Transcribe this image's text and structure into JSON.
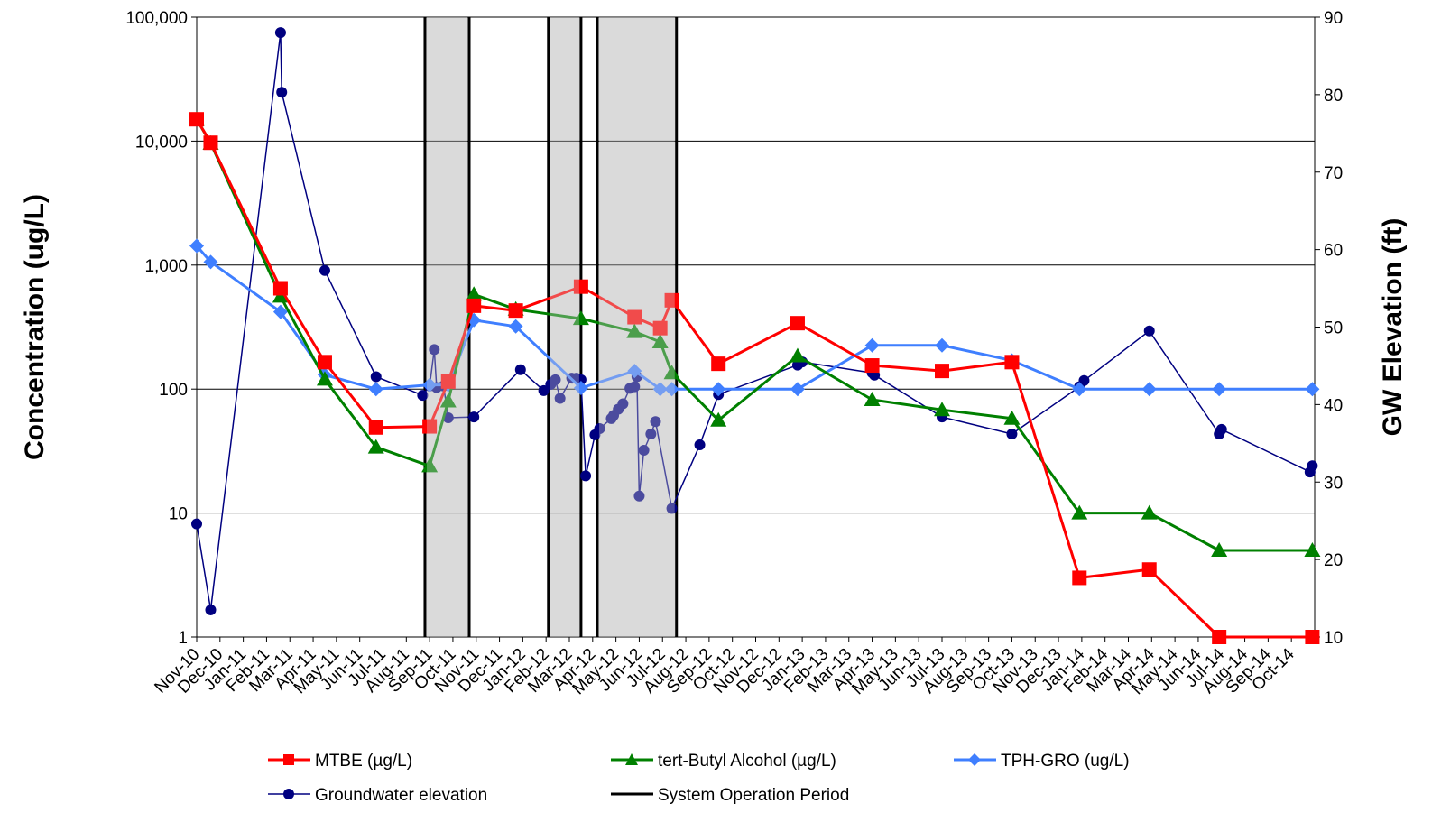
{
  "chart_data": {
    "type": "line",
    "title": "",
    "ylabel": "Concentration (ug/L)",
    "y2label": "GW Elevation (ft)",
    "yscale": "log",
    "ylim": [
      1,
      100000
    ],
    "y_ticks": [
      "1",
      "10",
      "100",
      "1,000",
      "10,000",
      "100,000"
    ],
    "y2lim": [
      10,
      90
    ],
    "y2_ticks": [
      "10",
      "20",
      "30",
      "40",
      "50",
      "60",
      "70",
      "80",
      "90"
    ],
    "x_tick_labels": [
      "Nov-10",
      "Dec-10",
      "Jan-11",
      "Feb-11",
      "Mar-11",
      "Apr-11",
      "May-11",
      "Jun-11",
      "Jul-11",
      "Aug-11",
      "Sep-11",
      "Oct-11",
      "Nov-11",
      "Dec-11",
      "Jan-12",
      "Feb-12",
      "Mar-12",
      "Apr-12",
      "May-12",
      "Jun-12",
      "Jul-12",
      "Aug-12",
      "Sep-12",
      "Oct-12",
      "Nov-12",
      "Dec-12",
      "Jan-13",
      "Feb-13",
      "Mar-13",
      "Apr-13",
      "May-13",
      "Jun-13",
      "Jul-13",
      "Aug-13",
      "Sep-13",
      "Oct-13",
      "Nov-13",
      "Dec-13",
      "Jan-14",
      "Feb-14",
      "Mar-14",
      "Apr-14",
      "May-14",
      "Jun-14",
      "Jul-14",
      "Aug-14",
      "Sep-14",
      "Oct-14"
    ],
    "x_range_months": [
      0,
      48
    ],
    "grid": "horizontal",
    "legend_placement": "bottom",
    "series": [
      {
        "name": "MTBE (µg/L)",
        "axis": "left",
        "color": "#ff0000",
        "marker": "square",
        "points": [
          [
            0,
            15000
          ],
          [
            0.6,
            9700
          ],
          [
            3.6,
            650
          ],
          [
            5.5,
            165
          ],
          [
            7.7,
            49
          ],
          [
            10,
            50
          ],
          [
            10.8,
            115
          ],
          [
            11.9,
            470
          ],
          [
            13.7,
            430
          ],
          [
            16.5,
            670
          ],
          [
            18.8,
            380
          ],
          [
            19.9,
            310
          ],
          [
            20.4,
            520
          ],
          [
            22.4,
            160
          ],
          [
            25.8,
            340
          ],
          [
            29,
            155
          ],
          [
            32,
            140
          ],
          [
            35,
            165
          ],
          [
            37.9,
            3
          ],
          [
            40.9,
            3.5
          ],
          [
            43.9,
            1
          ],
          [
            47.9,
            1
          ]
        ]
      },
      {
        "name": "tert-Butyl Alcohol (µg/L)",
        "axis": "left",
        "color": "#008000",
        "marker": "triangle",
        "points": [
          [
            0,
            15000
          ],
          [
            0.6,
            9600
          ],
          [
            3.6,
            560
          ],
          [
            5.5,
            120
          ],
          [
            7.7,
            34
          ],
          [
            10,
            24
          ],
          [
            10.8,
            80
          ],
          [
            11.9,
            580
          ],
          [
            13.7,
            440
          ],
          [
            16.5,
            370
          ],
          [
            18.8,
            290
          ],
          [
            19.9,
            240
          ],
          [
            20.4,
            135
          ],
          [
            22.4,
            56
          ],
          [
            25.8,
            185
          ],
          [
            29,
            82
          ],
          [
            32,
            68
          ],
          [
            35,
            58
          ],
          [
            37.9,
            10
          ],
          [
            40.9,
            10
          ],
          [
            43.9,
            5
          ],
          [
            47.9,
            5
          ]
        ]
      },
      {
        "name": "TPH-GRO (ug/L)",
        "axis": "left",
        "color": "#3f7fff",
        "marker": "diamond",
        "points": [
          [
            0,
            1430
          ],
          [
            0.6,
            1060
          ],
          [
            3.6,
            420
          ],
          [
            5.5,
            130
          ],
          [
            7.7,
            100
          ],
          [
            10,
            108
          ],
          [
            10.8,
            108
          ],
          [
            11.9,
            360
          ],
          [
            13.7,
            320
          ],
          [
            16.5,
            102
          ],
          [
            18.8,
            140
          ],
          [
            19.9,
            100
          ],
          [
            20.4,
            100
          ],
          [
            22.4,
            100
          ],
          [
            25.8,
            100
          ],
          [
            29,
            225
          ],
          [
            32,
            225
          ],
          [
            35,
            170
          ],
          [
            37.9,
            100
          ],
          [
            40.9,
            100
          ],
          [
            43.9,
            100
          ],
          [
            47.9,
            100
          ]
        ]
      },
      {
        "name": "Groundwater elevation",
        "axis": "right",
        "color": "#000080",
        "marker": "circle",
        "points": [
          [
            0,
            24.6
          ],
          [
            0.6,
            13.5
          ],
          [
            3.6,
            88
          ],
          [
            3.65,
            80.3
          ],
          [
            5.5,
            57.3
          ],
          [
            7.7,
            43.6
          ],
          [
            9.7,
            41.2
          ],
          [
            10,
            42.4
          ],
          [
            10.2,
            47.1
          ],
          [
            10.3,
            42.2
          ],
          [
            10.6,
            42.4
          ],
          [
            10.8,
            38.3
          ],
          [
            11.9,
            38.4
          ],
          [
            13.9,
            44.5
          ],
          [
            14.9,
            41.8
          ],
          [
            15.2,
            42.6
          ],
          [
            15.4,
            43.2
          ],
          [
            15.6,
            40.8
          ],
          [
            16.1,
            43.4
          ],
          [
            16.3,
            43.4
          ],
          [
            16.5,
            43.2
          ],
          [
            16.7,
            30.8
          ],
          [
            17.1,
            36.1
          ],
          [
            17.3,
            36.9
          ],
          [
            17.8,
            38.2
          ],
          [
            17.9,
            38.6
          ],
          [
            18.1,
            39.4
          ],
          [
            18.3,
            40.1
          ],
          [
            18.6,
            42.1
          ],
          [
            18.8,
            42.3
          ],
          [
            18.9,
            43.6
          ],
          [
            19.0,
            28.2
          ],
          [
            19.2,
            34.1
          ],
          [
            19.5,
            36.2
          ],
          [
            19.7,
            37.8
          ],
          [
            20.4,
            26.6
          ],
          [
            21.6,
            34.8
          ],
          [
            22.4,
            41.3
          ],
          [
            25.8,
            45.1
          ],
          [
            26,
            45.5
          ],
          [
            29,
            44.1
          ],
          [
            29.1,
            43.8
          ],
          [
            32,
            38.4
          ],
          [
            35,
            36.2
          ],
          [
            37.9,
            42.3
          ],
          [
            38.1,
            43.1
          ],
          [
            40.9,
            49.5
          ],
          [
            43.9,
            36.2
          ],
          [
            44.0,
            36.8
          ],
          [
            47.8,
            31.3
          ],
          [
            47.9,
            32.1
          ]
        ]
      },
      {
        "name": "System Operation Period",
        "axis": "none",
        "color": "#000000",
        "marker": "none",
        "periods": [
          [
            9.8,
            11.7
          ],
          [
            15.1,
            16.5
          ],
          [
            17.2,
            20.6
          ]
        ]
      }
    ]
  }
}
